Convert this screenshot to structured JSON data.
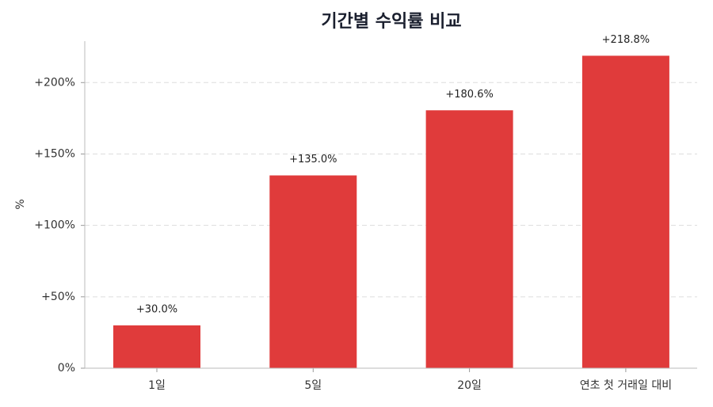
{
  "chart_data": {
    "type": "bar",
    "title": "기간별 수익률 비교",
    "ylabel": "%",
    "categories": [
      "1일",
      "5일",
      "20일",
      "연초 첫 거래일 대비"
    ],
    "values": [
      30.0,
      135.0,
      180.6,
      218.8
    ],
    "value_labels": [
      "+30.0%",
      "+135.0%",
      "+180.6%",
      "+218.8%"
    ],
    "color": "#e03b3b",
    "ylim": [
      0,
      229
    ],
    "yticks": [
      {
        "value": 0,
        "label": "0%"
      },
      {
        "value": 50,
        "label": "+50%"
      },
      {
        "value": 100,
        "label": "+100%"
      },
      {
        "value": 150,
        "label": "+150%"
      },
      {
        "value": 200,
        "label": "+200%"
      }
    ],
    "grid": true
  }
}
